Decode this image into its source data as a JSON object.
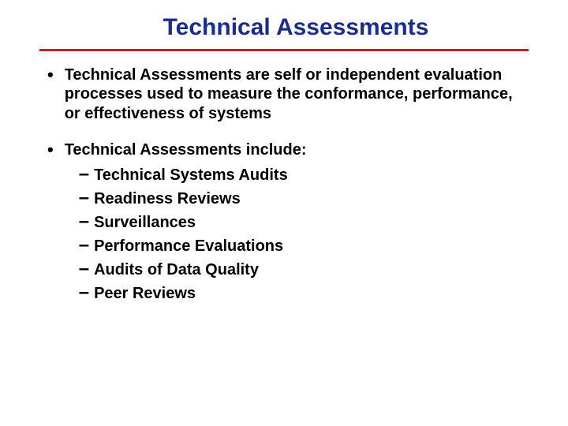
{
  "title": {
    "text": "Technical Assessments",
    "color": "#1a2d8a",
    "fontsize": 30
  },
  "divider": {
    "color": "#c0221f",
    "thickness": 3
  },
  "body": {
    "text_color": "#000000",
    "fontsize": 20,
    "bullet_dot_fontsize": 22,
    "sub_dash_fontsize": 24
  },
  "bullets": [
    {
      "text": "Technical Assessments are self or independent evaluation processes used to measure the conformance, performance, or effectiveness of systems",
      "subitems": []
    },
    {
      "text": "Technical Assessments include:",
      "subitems": [
        "Technical Systems Audits",
        "Readiness Reviews",
        "Surveillances",
        "Performance Evaluations",
        "Audits of Data Quality",
        "Peer Reviews"
      ]
    }
  ]
}
